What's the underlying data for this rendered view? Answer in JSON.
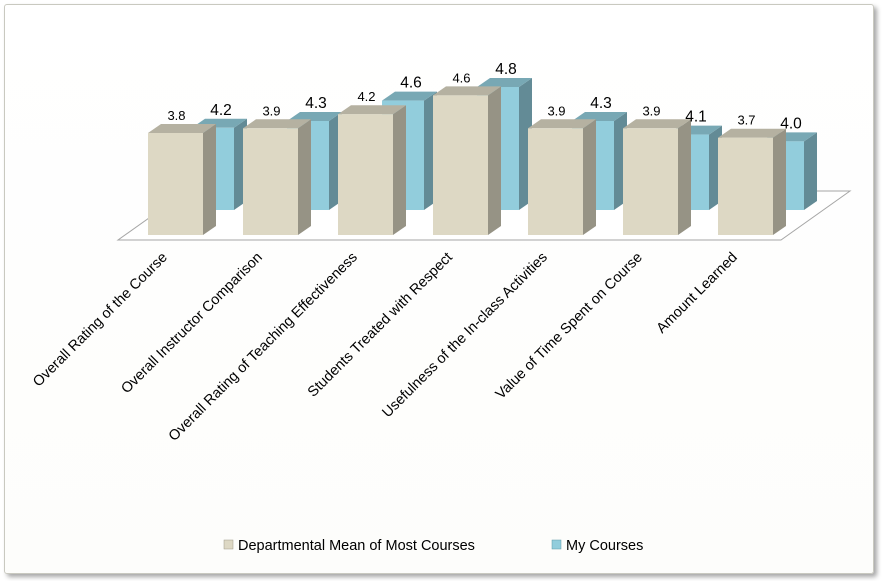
{
  "chart_data": {
    "type": "bar",
    "categories": [
      "Overall Rating of the Course",
      "Overall Instructor Comparison",
      "Overall Rating of Teaching Effectiveness",
      "Students Treated with Respect",
      "Usefulness of the In-class Activities",
      "Value of Time Spent on Course",
      "Amount Learned"
    ],
    "series": [
      {
        "name": "Departmental Mean of Most Courses",
        "values": [
          3.8,
          3.9,
          4.2,
          4.6,
          3.9,
          3.9,
          3.7
        ],
        "value_labels": [
          "3.8",
          "3.9",
          "4.2",
          "4.6",
          "3.9",
          "3.9",
          "3.7"
        ],
        "color": "#ddd8c4"
      },
      {
        "name": "My Courses",
        "values": [
          4.2,
          4.3,
          4.6,
          4.8,
          4.3,
          4.1,
          4.0
        ],
        "value_labels": [
          "4.2",
          "4.3",
          "4.6",
          "4.8",
          "4.3",
          "4.1",
          "4.0"
        ],
        "color": "#92cddc"
      }
    ],
    "style": "3d-clustered-column",
    "legend_position": "bottom",
    "grid": false
  }
}
